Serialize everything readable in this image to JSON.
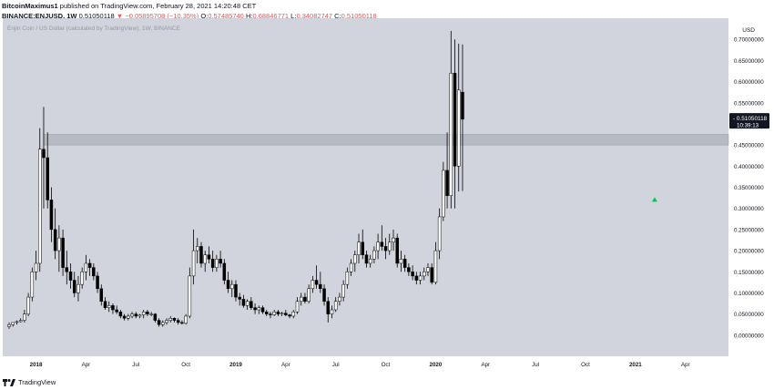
{
  "header": {
    "author": "BitcoinMaximus1",
    "published_text": "published on TradingView.com, February 28, 2021 14:20:48 CET",
    "symbol": "BINANCE:ENJUSD, 1W",
    "last": "0.51050118",
    "change": "−0.05895708 (−10.35%)",
    "open_label": "O:",
    "open": "0.57485740",
    "high_label": "H:",
    "high": "0.68846771",
    "low_label": "L:",
    "low": "0.34082747",
    "close_label": "C:",
    "close": "0.51050118"
  },
  "chart_title": "Enjin Coin / US Dollar (calculated by TradingView), 1W, BINANCE",
  "price_label": {
    "value": "0.51050118",
    "countdown": "10:39:13"
  },
  "footer": {
    "brand": "TradingView"
  },
  "colors": {
    "panel": "#d1d4dc",
    "candle_up": "#ffffff",
    "candle_down": "#000000",
    "zone": "#b2b5be",
    "marker": "#26a69a",
    "label_bg": "#131722"
  },
  "chart_data": {
    "type": "candlestick",
    "title": "Enjin Coin / US Dollar (calculated by TradingView), 1W, BINANCE",
    "currency": "USD",
    "ylim": [
      -0.05,
      0.75
    ],
    "y_ticks": [
      "0.70000000",
      "0.65000000",
      "0.60000000",
      "0.55000000",
      "0.50000000",
      "0.45000000",
      "0.40000000",
      "0.35000000",
      "0.30000000",
      "0.25000000",
      "0.20000000",
      "0.15000000",
      "0.10000000",
      "0.05000000",
      "0.00000000"
    ],
    "y_tick_values": [
      0.7,
      0.65,
      0.6,
      0.55,
      0.5,
      0.45,
      0.4,
      0.35,
      0.3,
      0.25,
      0.2,
      0.15,
      0.1,
      0.05,
      0.0
    ],
    "x_ticks": [
      {
        "label": "2018",
        "bar": 7
      },
      {
        "label": "Apr",
        "bar": 20
      },
      {
        "label": "Jul",
        "bar": 33
      },
      {
        "label": "Oct",
        "bar": 46
      },
      {
        "label": "2019",
        "bar": 59
      },
      {
        "label": "Apr",
        "bar": 72
      },
      {
        "label": "Jul",
        "bar": 85
      },
      {
        "label": "Oct",
        "bar": 98
      },
      {
        "label": "2020",
        "bar": 111
      },
      {
        "label": "Apr",
        "bar": 124
      },
      {
        "label": "Jul",
        "bar": 137
      },
      {
        "label": "Oct",
        "bar": 150
      },
      {
        "label": "2021",
        "bar": 163
      },
      {
        "label": "Apr",
        "bar": 176
      }
    ],
    "bar_count": 182,
    "resistance_zone": [
      0.45,
      0.475
    ],
    "marker_bar": 168,
    "marker_value": 0.32,
    "candles": [
      [
        0.02,
        0.03,
        0.015,
        0.025
      ],
      [
        0.025,
        0.03,
        0.02,
        0.03
      ],
      [
        0.03,
        0.035,
        0.025,
        0.032
      ],
      [
        0.032,
        0.04,
        0.03,
        0.035
      ],
      [
        0.035,
        0.06,
        0.03,
        0.05
      ],
      [
        0.05,
        0.1,
        0.045,
        0.09
      ],
      [
        0.09,
        0.16,
        0.08,
        0.15
      ],
      [
        0.15,
        0.2,
        0.13,
        0.17
      ],
      [
        0.17,
        0.49,
        0.15,
        0.44
      ],
      [
        0.44,
        0.54,
        0.3,
        0.42
      ],
      [
        0.42,
        0.48,
        0.3,
        0.32
      ],
      [
        0.32,
        0.35,
        0.22,
        0.25
      ],
      [
        0.25,
        0.3,
        0.18,
        0.2
      ],
      [
        0.2,
        0.26,
        0.15,
        0.23
      ],
      [
        0.23,
        0.25,
        0.14,
        0.16
      ],
      [
        0.16,
        0.2,
        0.12,
        0.15
      ],
      [
        0.15,
        0.17,
        0.11,
        0.13
      ],
      [
        0.13,
        0.15,
        0.09,
        0.1
      ],
      [
        0.1,
        0.14,
        0.08,
        0.12
      ],
      [
        0.12,
        0.16,
        0.11,
        0.15
      ],
      [
        0.15,
        0.19,
        0.13,
        0.17
      ],
      [
        0.17,
        0.18,
        0.14,
        0.16
      ],
      [
        0.16,
        0.17,
        0.13,
        0.14
      ],
      [
        0.14,
        0.15,
        0.1,
        0.11
      ],
      [
        0.11,
        0.12,
        0.07,
        0.08
      ],
      [
        0.08,
        0.09,
        0.06,
        0.065
      ],
      [
        0.065,
        0.08,
        0.055,
        0.07
      ],
      [
        0.07,
        0.075,
        0.05,
        0.06
      ],
      [
        0.06,
        0.07,
        0.05,
        0.055
      ],
      [
        0.055,
        0.06,
        0.04,
        0.045
      ],
      [
        0.045,
        0.05,
        0.035,
        0.04
      ],
      [
        0.04,
        0.05,
        0.035,
        0.045
      ],
      [
        0.045,
        0.055,
        0.04,
        0.05
      ],
      [
        0.05,
        0.055,
        0.04,
        0.045
      ],
      [
        0.045,
        0.05,
        0.04,
        0.048
      ],
      [
        0.048,
        0.06,
        0.04,
        0.055
      ],
      [
        0.055,
        0.06,
        0.045,
        0.05
      ],
      [
        0.05,
        0.055,
        0.045,
        0.05
      ],
      [
        0.05,
        0.052,
        0.03,
        0.035
      ],
      [
        0.035,
        0.04,
        0.02,
        0.025
      ],
      [
        0.025,
        0.035,
        0.02,
        0.03
      ],
      [
        0.03,
        0.04,
        0.025,
        0.035
      ],
      [
        0.035,
        0.045,
        0.03,
        0.04
      ],
      [
        0.04,
        0.042,
        0.03,
        0.035
      ],
      [
        0.035,
        0.04,
        0.025,
        0.03
      ],
      [
        0.03,
        0.035,
        0.025,
        0.028
      ],
      [
        0.028,
        0.05,
        0.025,
        0.045
      ],
      [
        0.045,
        0.16,
        0.04,
        0.14
      ],
      [
        0.14,
        0.25,
        0.12,
        0.2
      ],
      [
        0.2,
        0.23,
        0.17,
        0.21
      ],
      [
        0.21,
        0.22,
        0.16,
        0.17
      ],
      [
        0.17,
        0.2,
        0.15,
        0.19
      ],
      [
        0.19,
        0.21,
        0.17,
        0.18
      ],
      [
        0.18,
        0.2,
        0.15,
        0.16
      ],
      [
        0.16,
        0.19,
        0.15,
        0.18
      ],
      [
        0.18,
        0.2,
        0.16,
        0.17
      ],
      [
        0.17,
        0.18,
        0.12,
        0.13
      ],
      [
        0.13,
        0.15,
        0.1,
        0.11
      ],
      [
        0.11,
        0.13,
        0.09,
        0.12
      ],
      [
        0.12,
        0.13,
        0.08,
        0.09
      ],
      [
        0.09,
        0.1,
        0.07,
        0.085
      ],
      [
        0.085,
        0.095,
        0.065,
        0.07
      ],
      [
        0.07,
        0.085,
        0.06,
        0.08
      ],
      [
        0.08,
        0.09,
        0.06,
        0.065
      ],
      [
        0.065,
        0.075,
        0.05,
        0.06
      ],
      [
        0.06,
        0.07,
        0.05,
        0.065
      ],
      [
        0.065,
        0.07,
        0.05,
        0.055
      ],
      [
        0.055,
        0.06,
        0.045,
        0.05
      ],
      [
        0.05,
        0.055,
        0.04,
        0.048
      ],
      [
        0.048,
        0.06,
        0.045,
        0.055
      ],
      [
        0.055,
        0.06,
        0.045,
        0.05
      ],
      [
        0.05,
        0.055,
        0.045,
        0.052
      ],
      [
        0.052,
        0.06,
        0.045,
        0.048
      ],
      [
        0.048,
        0.05,
        0.04,
        0.045
      ],
      [
        0.045,
        0.06,
        0.04,
        0.055
      ],
      [
        0.055,
        0.09,
        0.05,
        0.08
      ],
      [
        0.08,
        0.1,
        0.07,
        0.09
      ],
      [
        0.09,
        0.1,
        0.075,
        0.08
      ],
      [
        0.08,
        0.12,
        0.075,
        0.11
      ],
      [
        0.11,
        0.14,
        0.1,
        0.13
      ],
      [
        0.13,
        0.165,
        0.11,
        0.12
      ],
      [
        0.12,
        0.15,
        0.1,
        0.11
      ],
      [
        0.11,
        0.12,
        0.07,
        0.08
      ],
      [
        0.08,
        0.09,
        0.03,
        0.05
      ],
      [
        0.05,
        0.07,
        0.04,
        0.06
      ],
      [
        0.06,
        0.09,
        0.055,
        0.08
      ],
      [
        0.08,
        0.1,
        0.07,
        0.09
      ],
      [
        0.09,
        0.13,
        0.08,
        0.12
      ],
      [
        0.12,
        0.16,
        0.11,
        0.15
      ],
      [
        0.15,
        0.18,
        0.14,
        0.17
      ],
      [
        0.17,
        0.2,
        0.15,
        0.19
      ],
      [
        0.19,
        0.24,
        0.17,
        0.22
      ],
      [
        0.22,
        0.25,
        0.18,
        0.19
      ],
      [
        0.19,
        0.2,
        0.16,
        0.17
      ],
      [
        0.17,
        0.19,
        0.16,
        0.18
      ],
      [
        0.18,
        0.21,
        0.17,
        0.2
      ],
      [
        0.2,
        0.24,
        0.18,
        0.22
      ],
      [
        0.22,
        0.26,
        0.2,
        0.21
      ],
      [
        0.21,
        0.23,
        0.18,
        0.2
      ],
      [
        0.2,
        0.24,
        0.19,
        0.22
      ],
      [
        0.22,
        0.25,
        0.2,
        0.23
      ],
      [
        0.23,
        0.24,
        0.16,
        0.17
      ],
      [
        0.17,
        0.2,
        0.15,
        0.18
      ],
      [
        0.18,
        0.19,
        0.15,
        0.16
      ],
      [
        0.16,
        0.17,
        0.14,
        0.15
      ],
      [
        0.15,
        0.165,
        0.13,
        0.14
      ],
      [
        0.14,
        0.15,
        0.12,
        0.13
      ],
      [
        0.13,
        0.15,
        0.12,
        0.14
      ],
      [
        0.14,
        0.16,
        0.13,
        0.15
      ],
      [
        0.15,
        0.17,
        0.14,
        0.16
      ],
      [
        0.16,
        0.17,
        0.12,
        0.125
      ],
      [
        0.125,
        0.22,
        0.12,
        0.2
      ],
      [
        0.2,
        0.3,
        0.18,
        0.28
      ],
      [
        0.28,
        0.41,
        0.27,
        0.39
      ],
      [
        0.39,
        0.48,
        0.3,
        0.33
      ],
      [
        0.33,
        0.72,
        0.3,
        0.62
      ],
      [
        0.62,
        0.7,
        0.3,
        0.4
      ],
      [
        0.4,
        0.69,
        0.34,
        0.58
      ],
      [
        0.575,
        0.688,
        0.341,
        0.511
      ]
    ]
  }
}
